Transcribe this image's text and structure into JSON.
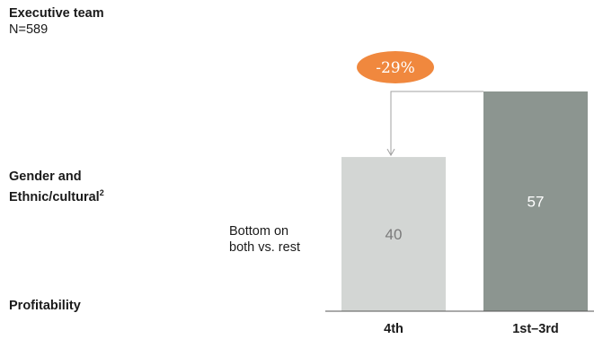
{
  "panel": {
    "title": "Executive team",
    "sample": "N=589",
    "dimension_line1": "Gender and",
    "dimension_line2": "Ethnic/cultural",
    "dimension_sup": "2",
    "comparison_line1": "Bottom on",
    "comparison_line2": "both vs. rest",
    "metric": "Profitability"
  },
  "callout": {
    "text": "-29%",
    "color": "#f0883e"
  },
  "colors": {
    "bar_light": "#d3d6d4",
    "bar_dark": "#8c9590",
    "value_light": "#7a7a7a",
    "value_dark": "#ffffff",
    "arrow": "#a0a0a0",
    "baseline": "#555555"
  },
  "chart_data": {
    "type": "bar",
    "categories": [
      "4th",
      "1st–3rd"
    ],
    "values": [
      40,
      57
    ],
    "ylim": [
      0,
      57
    ],
    "title": "",
    "xlabel": "",
    "ylabel": ""
  }
}
